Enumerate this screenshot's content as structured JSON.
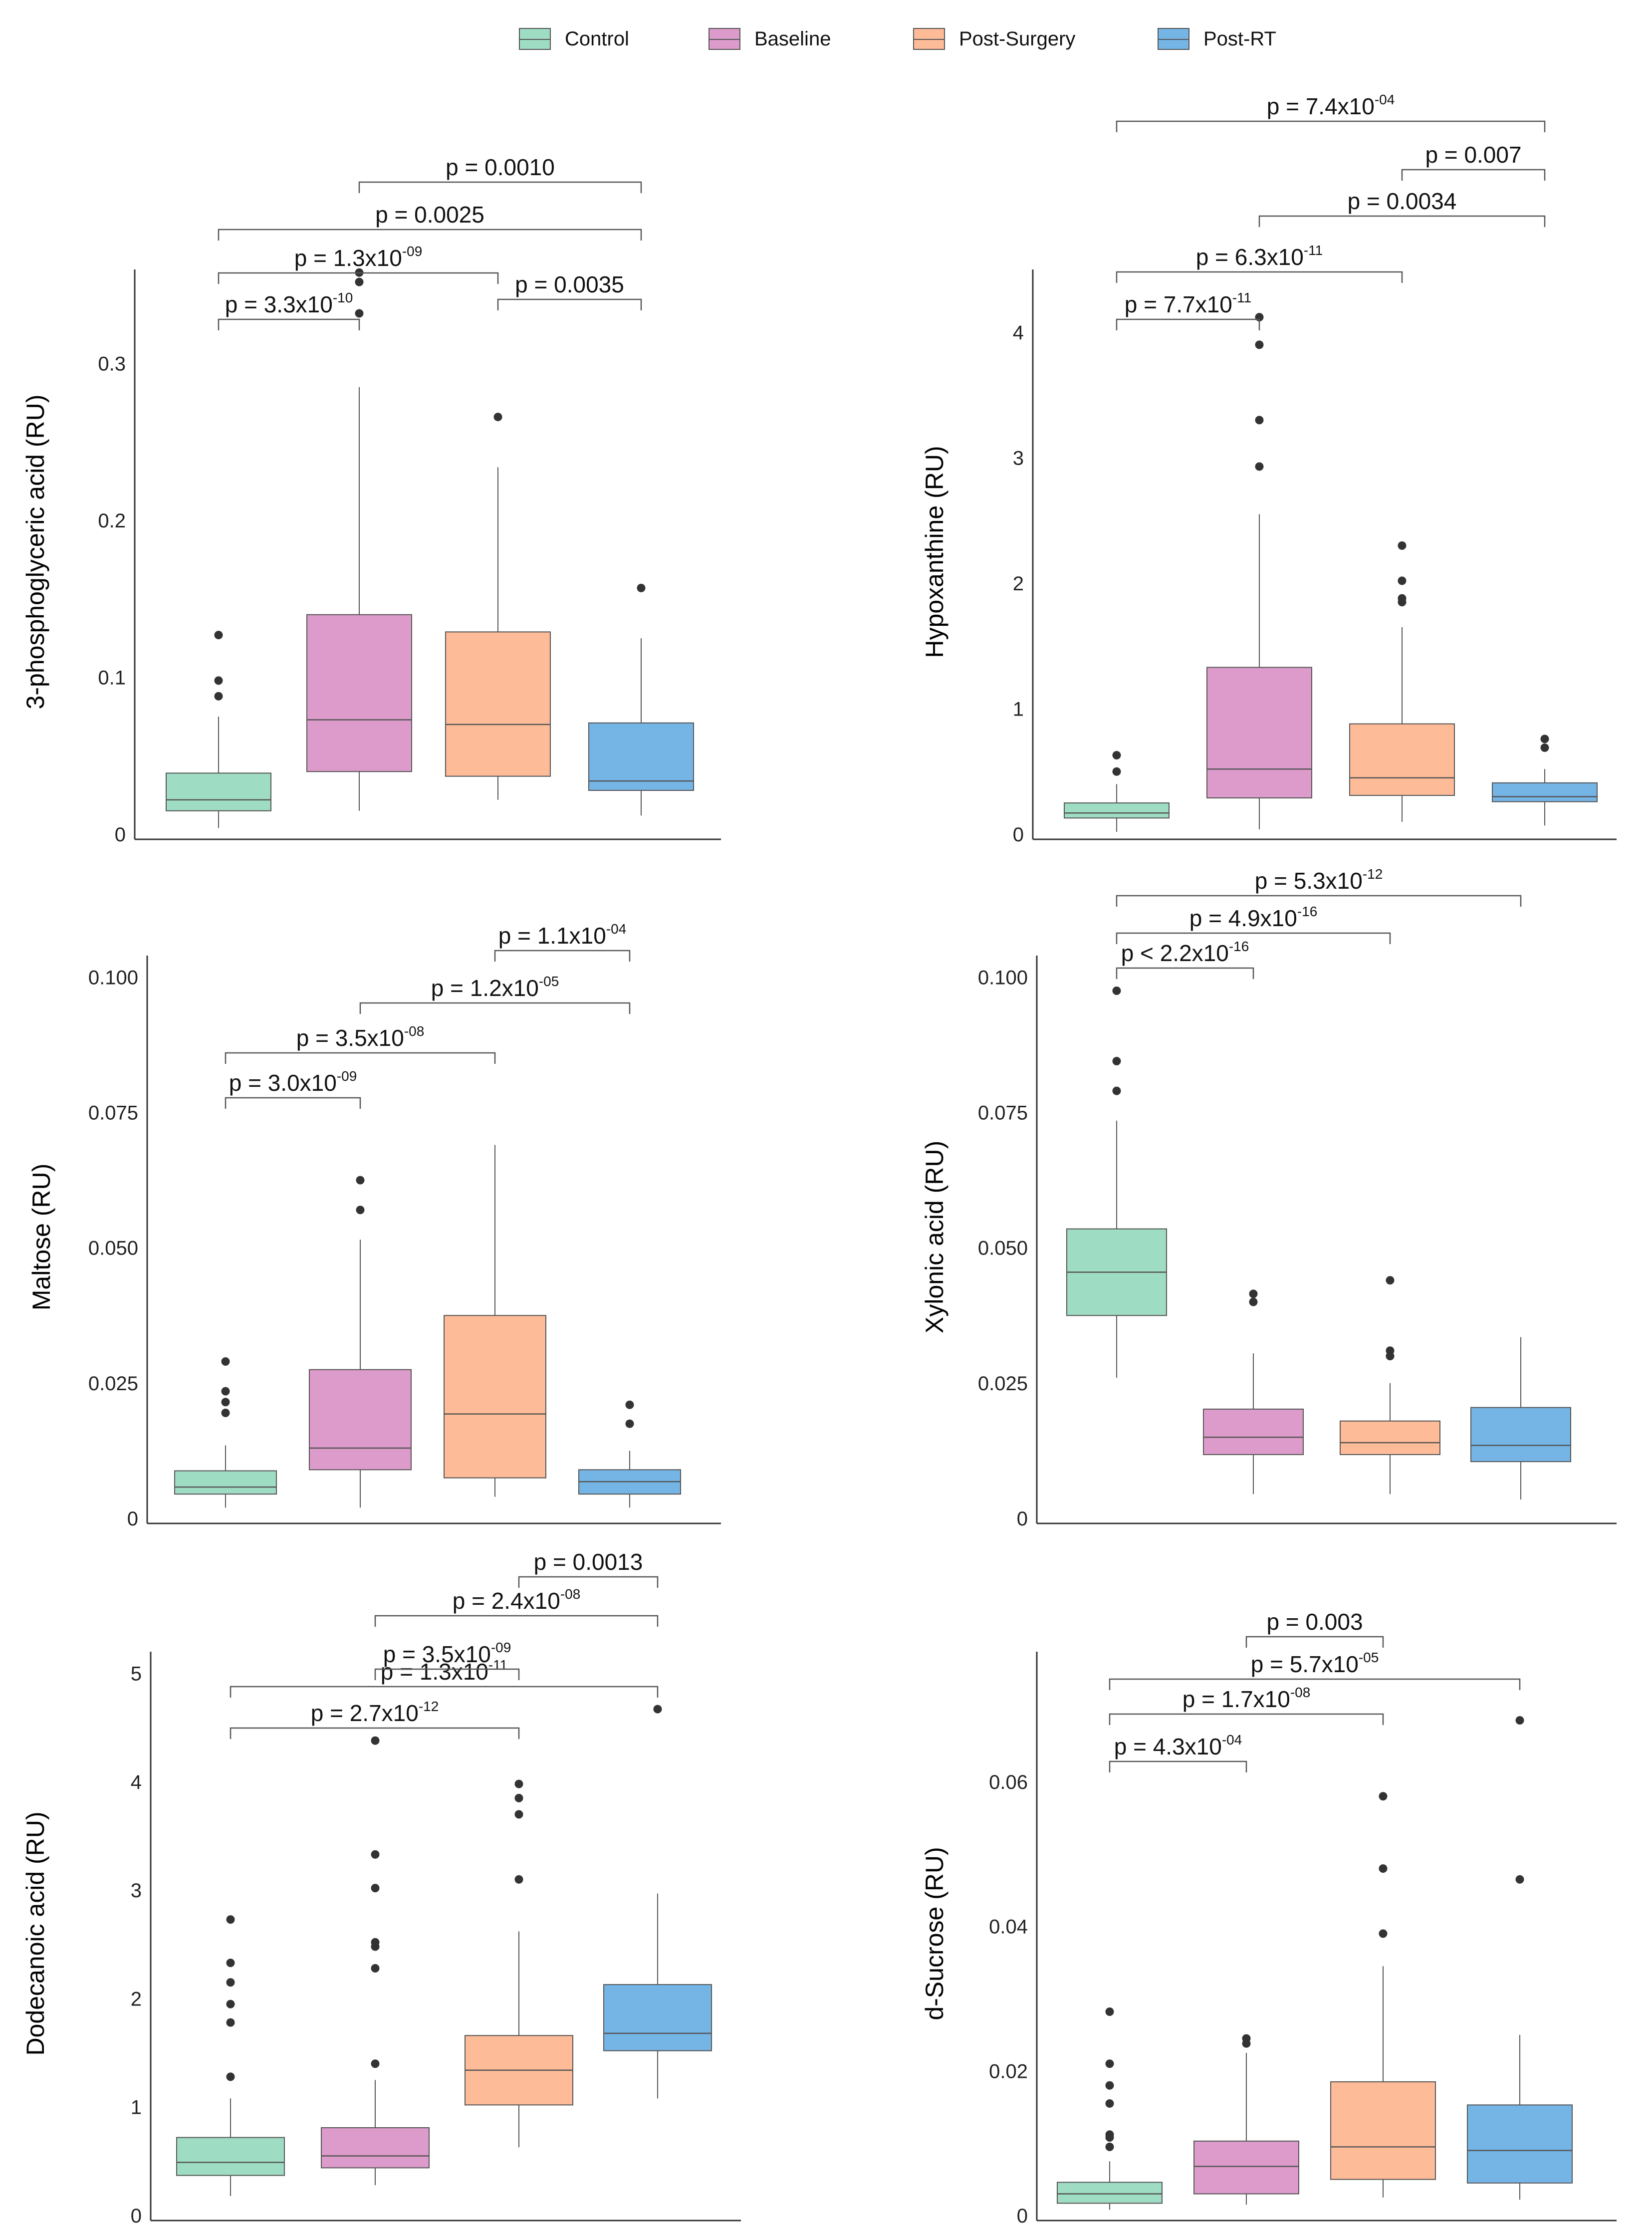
{
  "legend": {
    "items": [
      {
        "label": "Control",
        "color": "#9fdcc4"
      },
      {
        "label": "Baseline",
        "color": "#dd9bcb"
      },
      {
        "label": "Post-Surgery",
        "color": "#fdbb98"
      },
      {
        "label": "Post-RT",
        "color": "#75b5e6"
      }
    ]
  },
  "chart_data": [
    {
      "type": "box",
      "ylabel": "3-phosphoglyceric acid (RU)",
      "ylim": [
        0,
        0.36
      ],
      "yticks": [
        0,
        0.1,
        0.2,
        0.3
      ],
      "ytick_labels": [
        "0",
        "0.1",
        "0.2",
        "0.3"
      ],
      "groups": [
        {
          "name": "Control",
          "min": 0.004,
          "q1": 0.015,
          "median": 0.022,
          "q3": 0.039,
          "max": 0.075,
          "outliers": [
            0.088,
            0.098,
            0.127
          ]
        },
        {
          "name": "Baseline",
          "min": 0.015,
          "q1": 0.04,
          "median": 0.073,
          "q3": 0.14,
          "max": 0.285,
          "outliers": [
            0.332,
            0.352,
            0.358
          ]
        },
        {
          "name": "Post-Surgery",
          "min": 0.022,
          "q1": 0.037,
          "median": 0.07,
          "q3": 0.129,
          "max": 0.234,
          "outliers": [
            0.266
          ]
        },
        {
          "name": "Post-RT",
          "min": 0.012,
          "q1": 0.028,
          "median": 0.034,
          "q3": 0.071,
          "max": 0.125,
          "outliers": [
            0.157
          ]
        }
      ],
      "comparisons": [
        {
          "pair": [
            0,
            1
          ],
          "label": "p = 3.3x10",
          "exp": "-10"
        },
        {
          "pair": [
            2,
            3
          ],
          "label": "p = 0.0035",
          "exp": ""
        },
        {
          "pair": [
            0,
            2
          ],
          "label": "p = 1.3x10",
          "exp": "-09"
        },
        {
          "pair": [
            0,
            3
          ],
          "label": "p = 0.0025",
          "exp": ""
        },
        {
          "pair": [
            1,
            3
          ],
          "label": "p = 0.0010",
          "exp": ""
        }
      ]
    },
    {
      "type": "box",
      "ylabel": "Hypoxanthine (RU)",
      "ylim": [
        0,
        4.5
      ],
      "yticks": [
        0,
        1,
        2,
        3,
        4
      ],
      "ytick_labels": [
        "0",
        "1",
        "2",
        "3",
        "4"
      ],
      "groups": [
        {
          "name": "Control",
          "min": 0.02,
          "q1": 0.13,
          "median": 0.17,
          "q3": 0.25,
          "max": 0.4,
          "outliers": [
            0.5,
            0.63
          ]
        },
        {
          "name": "Baseline",
          "min": 0.04,
          "q1": 0.29,
          "median": 0.52,
          "q3": 1.33,
          "max": 2.55,
          "outliers": [
            2.93,
            3.3,
            3.9,
            4.12
          ]
        },
        {
          "name": "Post-Surgery",
          "min": 0.1,
          "q1": 0.31,
          "median": 0.45,
          "q3": 0.88,
          "max": 1.65,
          "outliers": [
            1.85,
            1.88,
            2.02,
            2.3
          ]
        },
        {
          "name": "Post-RT",
          "min": 0.07,
          "q1": 0.26,
          "median": 0.3,
          "q3": 0.41,
          "max": 0.52,
          "outliers": [
            0.69,
            0.76
          ]
        }
      ],
      "comparisons": [
        {
          "pair": [
            0,
            1
          ],
          "label": "p = 7.7x10",
          "exp": "-11"
        },
        {
          "pair": [
            0,
            2
          ],
          "label": "p = 6.3x10",
          "exp": "-11"
        },
        {
          "pair": [
            1,
            3
          ],
          "label": "p = 0.0034",
          "exp": ""
        },
        {
          "pair": [
            2,
            3
          ],
          "label": "p = 0.007",
          "exp": ""
        },
        {
          "pair": [
            0,
            3
          ],
          "label": "p = 7.4x10",
          "exp": "-04"
        }
      ]
    },
    {
      "type": "box",
      "ylabel": "Maltose (RU)",
      "ylim": [
        0,
        0.104
      ],
      "yticks": [
        0,
        0.025,
        0.05,
        0.075,
        0.1
      ],
      "ytick_labels": [
        "0",
        "0.025",
        "0.050",
        "0.075",
        "0.100"
      ],
      "groups": [
        {
          "name": "Control",
          "min": 0.002,
          "q1": 0.0045,
          "median": 0.0058,
          "q3": 0.0088,
          "max": 0.0135,
          "outliers": [
            0.0195,
            0.0215,
            0.0235,
            0.029
          ]
        },
        {
          "name": "Baseline",
          "min": 0.002,
          "q1": 0.009,
          "median": 0.013,
          "q3": 0.0275,
          "max": 0.0515,
          "outliers": [
            0.057,
            0.0625
          ]
        },
        {
          "name": "Post-Surgery",
          "min": 0.004,
          "q1": 0.0075,
          "median": 0.0193,
          "q3": 0.0375,
          "max": 0.069,
          "outliers": []
        },
        {
          "name": "Post-RT",
          "min": 0.002,
          "q1": 0.0045,
          "median": 0.0068,
          "q3": 0.009,
          "max": 0.0125,
          "outliers": [
            0.0175,
            0.021
          ]
        }
      ],
      "comparisons": [
        {
          "pair": [
            0,
            1
          ],
          "label": "p = 3.0x10",
          "exp": "-09"
        },
        {
          "pair": [
            0,
            2
          ],
          "label": "p = 3.5x10",
          "exp": "-08"
        },
        {
          "pair": [
            1,
            3
          ],
          "label": "p = 1.2x10",
          "exp": "-05"
        },
        {
          "pair": [
            2,
            3
          ],
          "label": "p = 1.1x10",
          "exp": "-04"
        }
      ]
    },
    {
      "type": "box",
      "ylabel": "Xylonic acid (RU)",
      "ylim": [
        0,
        0.104
      ],
      "yticks": [
        0,
        0.025,
        0.05,
        0.075,
        0.1
      ],
      "ytick_labels": [
        "0",
        "0.025",
        "0.050",
        "0.075",
        "0.100"
      ],
      "groups": [
        {
          "name": "Control",
          "min": 0.026,
          "q1": 0.0375,
          "median": 0.0455,
          "q3": 0.0535,
          "max": 0.0735,
          "outliers": [
            0.079,
            0.0845,
            0.0975
          ]
        },
        {
          "name": "Baseline",
          "min": 0.0045,
          "q1": 0.0118,
          "median": 0.015,
          "q3": 0.0202,
          "max": 0.0305,
          "outliers": [
            0.04,
            0.0415
          ]
        },
        {
          "name": "Post-Surgery",
          "min": 0.0045,
          "q1": 0.0118,
          "median": 0.014,
          "q3": 0.018,
          "max": 0.025,
          "outliers": [
            0.03,
            0.031,
            0.044
          ]
        },
        {
          "name": "Post-RT",
          "min": 0.0035,
          "q1": 0.0105,
          "median": 0.0135,
          "q3": 0.0205,
          "max": 0.0335,
          "outliers": []
        }
      ],
      "comparisons": [
        {
          "pair": [
            0,
            1
          ],
          "label": "p < 2.2x10",
          "exp": "-16"
        },
        {
          "pair": [
            0,
            2
          ],
          "label": "p = 4.9x10",
          "exp": "-16"
        },
        {
          "pair": [
            0,
            3
          ],
          "label": "p = 5.3x10",
          "exp": "-12"
        }
      ]
    },
    {
      "type": "box",
      "ylabel": "Dodecanoic acid (RU)",
      "ylim": [
        0,
        5.2
      ],
      "yticks": [
        0,
        1,
        2,
        3,
        4,
        5
      ],
      "ytick_labels": [
        "0",
        "1",
        "2",
        "3",
        "4",
        "5"
      ],
      "groups": [
        {
          "name": "Control",
          "min": 0.18,
          "q1": 0.37,
          "median": 0.49,
          "q3": 0.72,
          "max": 1.08,
          "outliers": [
            1.28,
            1.78,
            1.95,
            2.15,
            2.33,
            2.73
          ]
        },
        {
          "name": "Baseline",
          "min": 0.28,
          "q1": 0.44,
          "median": 0.55,
          "q3": 0.81,
          "max": 1.25,
          "outliers": [
            1.4,
            2.28,
            2.48,
            2.52,
            3.02,
            3.33,
            4.38
          ]
        },
        {
          "name": "Post-Surgery",
          "min": 0.63,
          "q1": 1.02,
          "median": 1.34,
          "q3": 1.66,
          "max": 2.62,
          "outliers": [
            3.1,
            3.7,
            3.85,
            3.98
          ]
        },
        {
          "name": "Post-RT",
          "min": 1.08,
          "q1": 1.52,
          "median": 1.68,
          "q3": 2.13,
          "max": 2.97,
          "outliers": [
            4.67
          ]
        }
      ],
      "comparisons": [
        {
          "pair": [
            0,
            2
          ],
          "label": "p = 2.7x10",
          "exp": "-12"
        },
        {
          "pair": [
            0,
            3
          ],
          "label": "p = 1.3x10",
          "exp": "-11"
        },
        {
          "pair": [
            1,
            2
          ],
          "label": "p = 3.5x10",
          "exp": "-09"
        },
        {
          "pair": [
            1,
            3
          ],
          "label": "p = 2.4x10",
          "exp": "-08"
        },
        {
          "pair": [
            2,
            3
          ],
          "label": "p = 0.0013",
          "exp": ""
        }
      ]
    },
    {
      "type": "box",
      "ylabel": "d-Sucrose (RU)",
      "ylim": [
        0,
        0.078
      ],
      "yticks": [
        0,
        0.02,
        0.04,
        0.06
      ],
      "ytick_labels": [
        "0",
        "0.02",
        "0.04",
        "0.06"
      ],
      "groups": [
        {
          "name": "Control",
          "min": 0.0008,
          "q1": 0.0017,
          "median": 0.003,
          "q3": 0.0046,
          "max": 0.0075,
          "outliers": [
            0.0095,
            0.0108,
            0.0112,
            0.0155,
            0.018,
            0.021,
            0.0282
          ]
        },
        {
          "name": "Baseline",
          "min": 0.0015,
          "q1": 0.003,
          "median": 0.0068,
          "q3": 0.0103,
          "max": 0.0225,
          "outliers": [
            0.0238,
            0.0245
          ]
        },
        {
          "name": "Post-Surgery",
          "min": 0.0025,
          "q1": 0.005,
          "median": 0.0095,
          "q3": 0.0185,
          "max": 0.0345,
          "outliers": [
            0.039,
            0.048,
            0.058
          ]
        },
        {
          "name": "Post-RT",
          "min": 0.0022,
          "q1": 0.0045,
          "median": 0.009,
          "q3": 0.0153,
          "max": 0.025,
          "outliers": [
            0.0465,
            0.0685
          ]
        }
      ],
      "comparisons": [
        {
          "pair": [
            0,
            1
          ],
          "label": "p = 4.3x10",
          "exp": "-04"
        },
        {
          "pair": [
            0,
            2
          ],
          "label": "p = 1.7x10",
          "exp": "-08"
        },
        {
          "pair": [
            0,
            3
          ],
          "label": "p = 5.7x10",
          "exp": "-05"
        },
        {
          "pair": [
            1,
            2
          ],
          "label": "p = 0.003",
          "exp": ""
        }
      ]
    }
  ]
}
